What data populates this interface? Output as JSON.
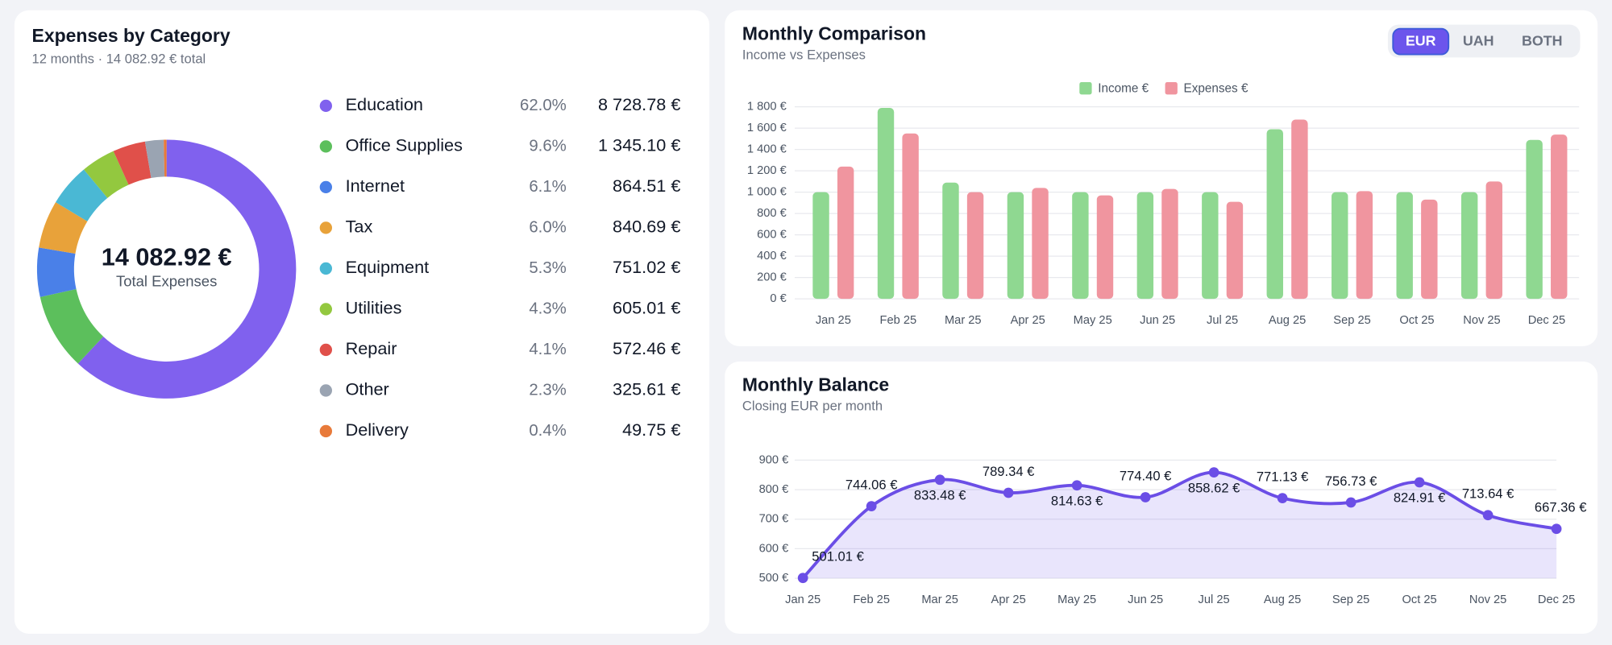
{
  "chart_data": [
    {
      "type": "pie",
      "title": "Expenses by Category",
      "subtitle": "12 months · 14 082.92 € total",
      "center_label": "14 082.92 €",
      "center_caption": "Total Expenses",
      "categories": [
        "Education",
        "Office Supplies",
        "Internet",
        "Tax",
        "Equipment",
        "Utilities",
        "Repair",
        "Other",
        "Delivery"
      ],
      "values": [
        8728.78,
        1345.1,
        864.51,
        840.69,
        751.02,
        605.01,
        572.46,
        325.61,
        49.75
      ],
      "value_labels": [
        "8 728.78 €",
        "1 345.10 €",
        "864.51 €",
        "840.69 €",
        "751.02 €",
        "605.01 €",
        "572.46 €",
        "325.61 €",
        "49.75 €"
      ],
      "percentages": [
        62.0,
        9.6,
        6.1,
        6.0,
        5.3,
        4.3,
        4.1,
        2.3,
        0.4
      ],
      "percentage_labels": [
        "62.0%",
        "9.6%",
        "6.1%",
        "6.0%",
        "5.3%",
        "4.3%",
        "4.1%",
        "2.3%",
        "0.4%"
      ],
      "colors": [
        "#8061ee",
        "#5cbf5c",
        "#4a80e8",
        "#e8a23a",
        "#4ab8d4",
        "#93c83f",
        "#e0504a",
        "#9aa4b2",
        "#e87a3a"
      ]
    },
    {
      "type": "bar",
      "title": "Monthly Comparison",
      "subtitle": "Income vs Expenses",
      "categories": [
        "Jan 25",
        "Feb 25",
        "Mar 25",
        "Apr 25",
        "May 25",
        "Jun 25",
        "Jul 25",
        "Aug 25",
        "Sep 25",
        "Oct 25",
        "Nov 25",
        "Dec 25"
      ],
      "series": [
        {
          "name": "Income €",
          "color": "#8fd891",
          "values": [
            1000,
            1790,
            1090,
            1000,
            1000,
            1000,
            1000,
            1590,
            1000,
            1000,
            1000,
            1490
          ]
        },
        {
          "name": "Expenses €",
          "color": "#f0959f",
          "values": [
            1240,
            1550,
            1000,
            1040,
            970,
            1030,
            910,
            1680,
            1010,
            930,
            1100,
            1540
          ]
        }
      ],
      "ylim": [
        0,
        1800
      ],
      "yticks": [
        {
          "value": 0,
          "label": "0 €"
        },
        {
          "value": 200,
          "label": "200 €"
        },
        {
          "value": 400,
          "label": "400 €"
        },
        {
          "value": 600,
          "label": "600 €"
        },
        {
          "value": 800,
          "label": "800 €"
        },
        {
          "value": 1000,
          "label": "1 000 €"
        },
        {
          "value": 1200,
          "label": "1 200 €"
        },
        {
          "value": 1400,
          "label": "1 400 €"
        },
        {
          "value": 1600,
          "label": "1 600 €"
        },
        {
          "value": 1800,
          "label": "1 800 €"
        }
      ],
      "grid": true,
      "legend": "top"
    },
    {
      "type": "line",
      "title": "Monthly Balance",
      "subtitle": "Closing EUR per month",
      "categories": [
        "Jan 25",
        "Feb 25",
        "Mar 25",
        "Apr 25",
        "May 25",
        "Jun 25",
        "Jul 25",
        "Aug 25",
        "Sep 25",
        "Oct 25",
        "Nov 25",
        "Dec 25"
      ],
      "values": [
        501.01,
        744.06,
        833.48,
        789.34,
        814.63,
        774.4,
        858.62,
        771.13,
        756.73,
        824.91,
        713.64,
        667.36
      ],
      "value_labels": [
        "501.01 €",
        "744.06 €",
        "833.48 €",
        "789.34 €",
        "814.63 €",
        "774.40 €",
        "858.62 €",
        "771.13 €",
        "756.73 €",
        "824.91 €",
        "713.64 €",
        "667.36 €"
      ],
      "color": "#6b4ee6",
      "area": true,
      "smooth": true,
      "ylim": [
        500,
        900
      ],
      "yticks": [
        {
          "value": 500,
          "label": "500 €"
        },
        {
          "value": 600,
          "label": "600 €"
        },
        {
          "value": 700,
          "label": "700 €"
        },
        {
          "value": 800,
          "label": "800 €"
        },
        {
          "value": 900,
          "label": "900 €"
        }
      ],
      "grid": true
    }
  ],
  "currency_toggle": {
    "options": [
      "EUR",
      "UAH",
      "BOTH"
    ],
    "active_index": 0
  }
}
